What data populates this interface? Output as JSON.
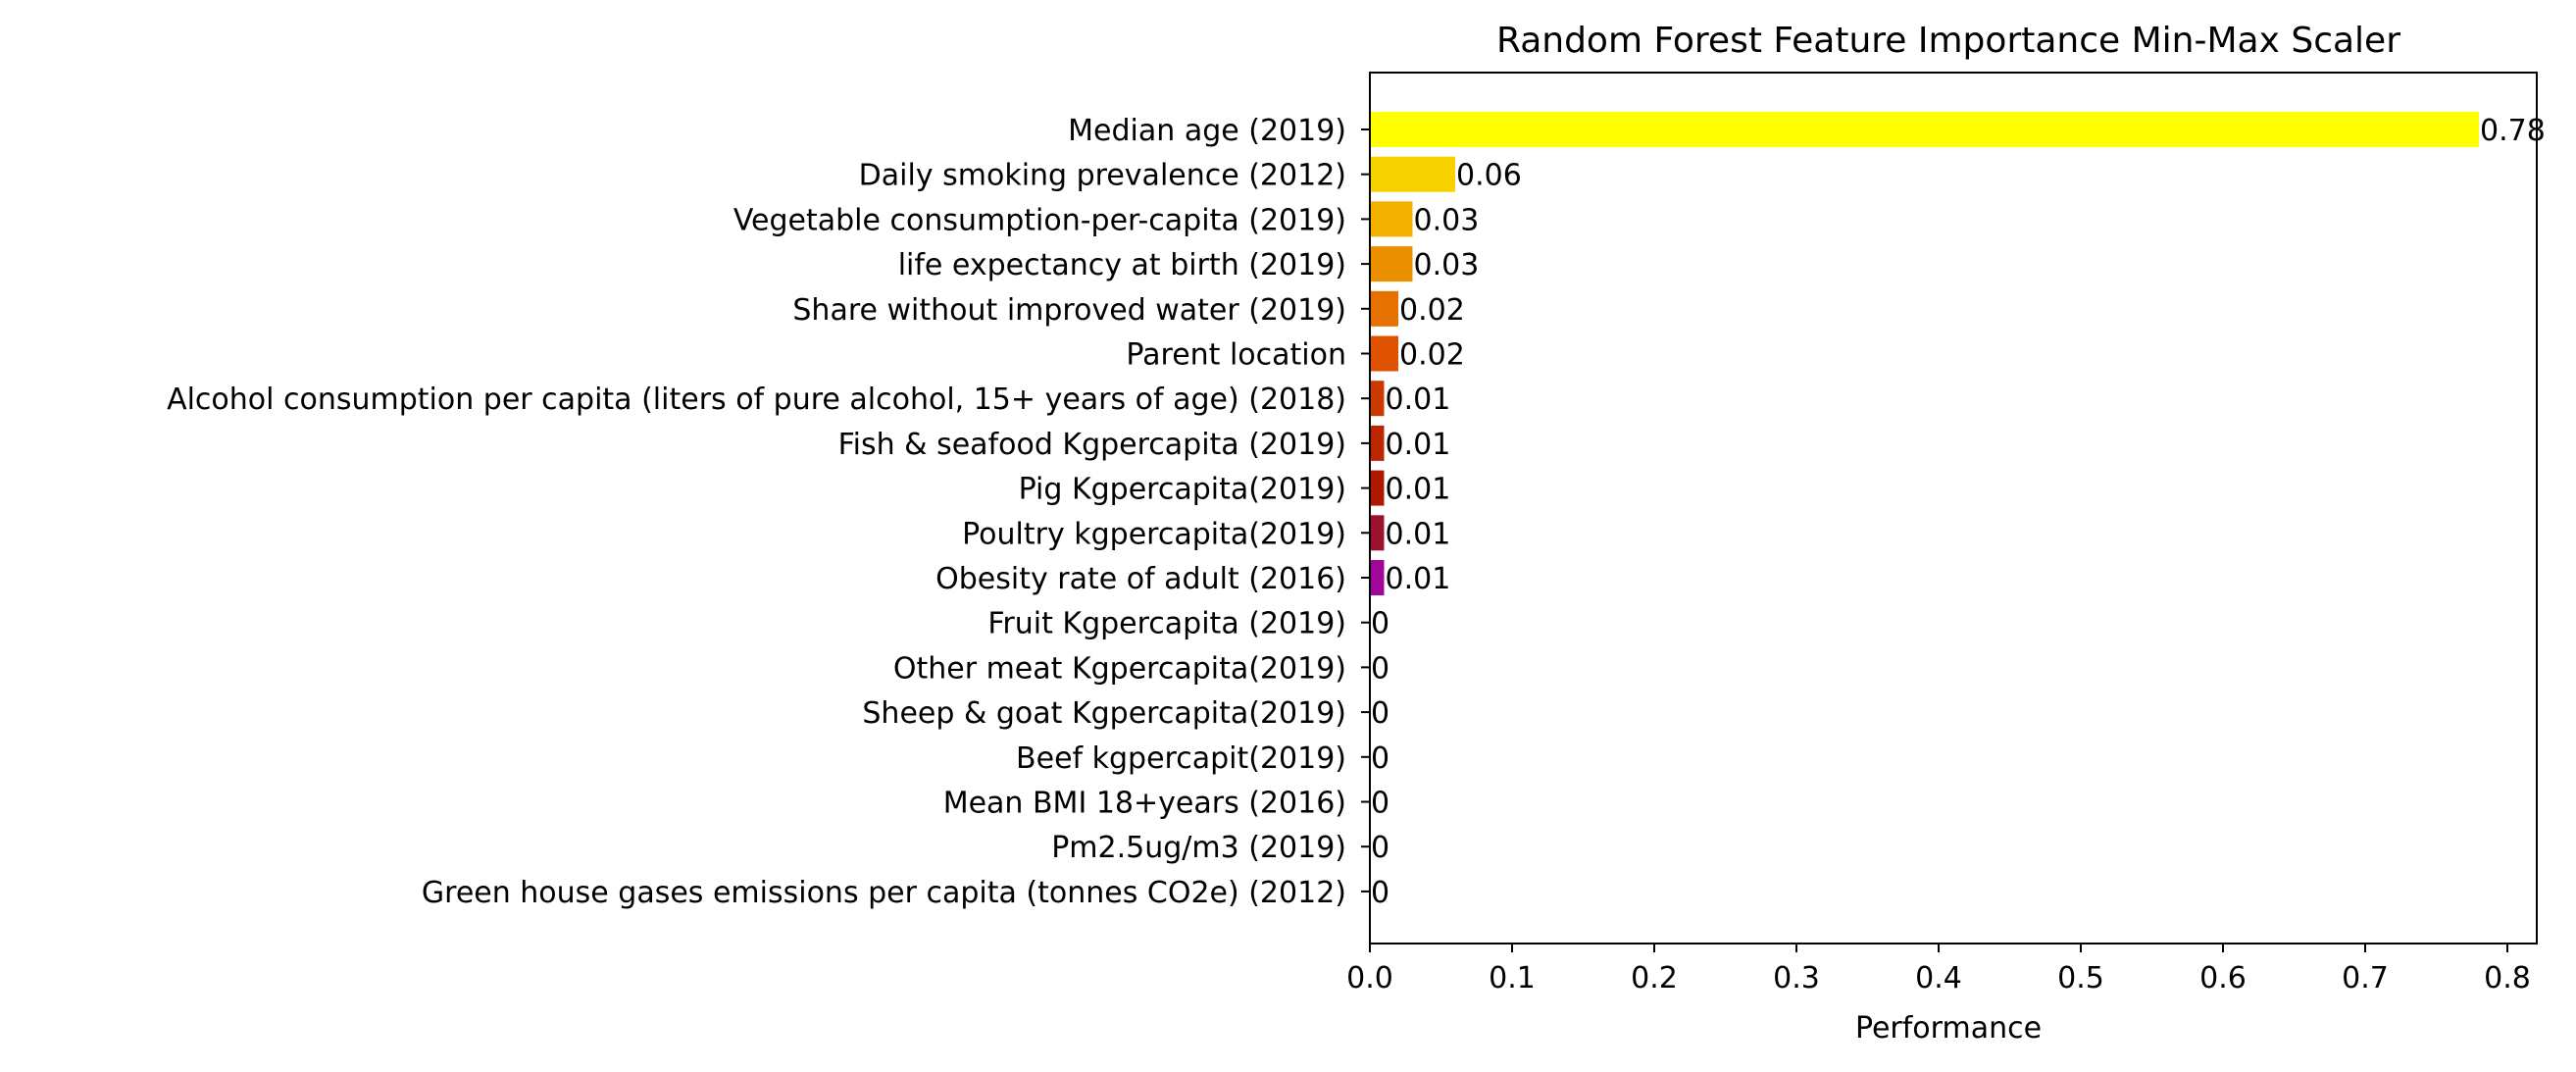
{
  "chart_data": {
    "type": "bar",
    "orientation": "horizontal",
    "title": "Random Forest Feature Importance Min-Max Scaler",
    "xlabel": "Performance",
    "ylabel": "",
    "xlim": [
      0,
      0.82
    ],
    "xticks": [
      0.0,
      0.1,
      0.2,
      0.3,
      0.4,
      0.5,
      0.6,
      0.7,
      0.8
    ],
    "xtick_labels": [
      "0.0",
      "0.1",
      "0.2",
      "0.3",
      "0.4",
      "0.5",
      "0.6",
      "0.7",
      "0.8"
    ],
    "grid": false,
    "categories": [
      "Median age (2019)",
      "Daily smoking prevalence (2012)",
      "Vegetable consumption-per-capita (2019)",
      "life expectancy at birth (2019)",
      "Share without improved water (2019)",
      "Parent location",
      "Alcohol consumption per capita (liters of pure alcohol, 15+ years of age) (2018) ",
      "Fish & seafood Kgpercapita (2019)",
      "Pig Kgpercapita(2019)",
      "Poultry kgpercapita(2019)",
      "Obesity rate of adult (2016)",
      "Fruit Kgpercapita (2019)",
      "Other meat Kgpercapita(2019)",
      "Sheep & goat Kgpercapita(2019)",
      "Beef kgpercapit(2019)",
      "Mean BMI 18+years (2016)",
      "Pm2.5ug/m3 (2019)",
      "Green house gases emissions per capita (tonnes CO2e) (2012)"
    ],
    "values": [
      0.78,
      0.06,
      0.03,
      0.03,
      0.02,
      0.02,
      0.01,
      0.01,
      0.01,
      0.01,
      0.01,
      0,
      0,
      0,
      0,
      0,
      0,
      0
    ],
    "value_labels": [
      "0.78",
      "0.06",
      "0.03",
      "0.03",
      "0.02",
      "0.02",
      "0.01",
      "0.01",
      "0.01",
      "0.01",
      "0.01",
      "0",
      "0",
      "0",
      "0",
      "0",
      "0",
      "0"
    ],
    "colors": [
      "#ffff00",
      "#f8d200",
      "#f2b000",
      "#ec9000",
      "#e67000",
      "#de5200",
      "#cc3a00",
      "#bc2600",
      "#ac1800",
      "#9c1030",
      "#a0069a",
      "#800080",
      "#800080",
      "#800080",
      "#800080",
      "#800080",
      "#800080",
      "#800080"
    ]
  }
}
